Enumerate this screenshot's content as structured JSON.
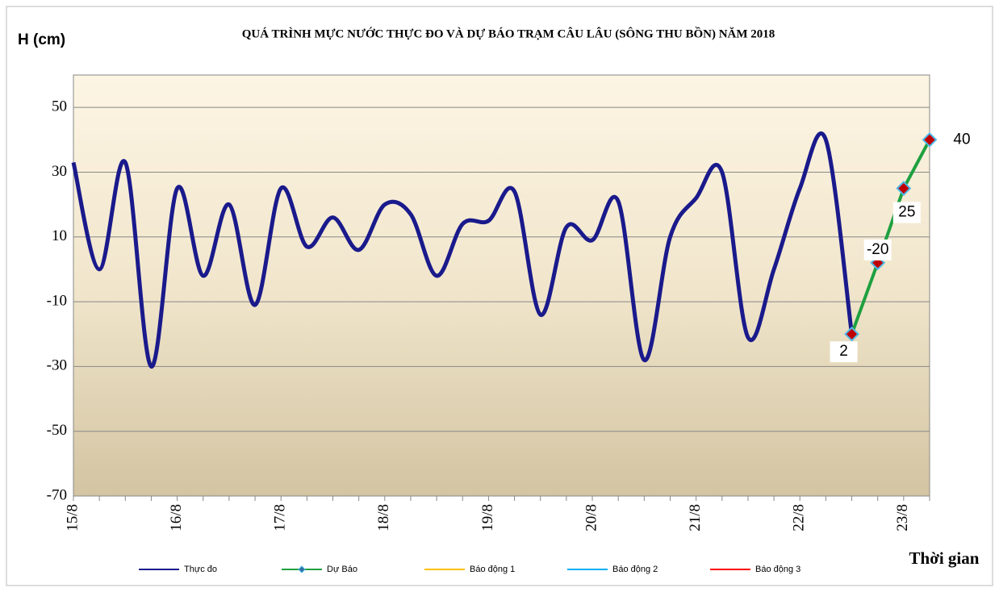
{
  "chart_data": {
    "type": "line",
    "title": "QUÁ TRÌNH MỰC NƯỚC THỰC ĐO VÀ DỰ BÁO TRẠM CÂU LÂU (SÔNG THU BỒN) NĂM  2018",
    "y_label": "H (cm)",
    "x_label": "Thời gian",
    "categories": [
      "15/8",
      null,
      null,
      null,
      "16/8",
      null,
      null,
      null,
      "17/8",
      null,
      null,
      null,
      "18/8",
      null,
      null,
      null,
      "19/8",
      null,
      null,
      null,
      "20/8",
      null,
      null,
      null,
      "21/8",
      null,
      null,
      null,
      "22/8",
      null,
      null,
      null,
      "23/8",
      null
    ],
    "series": [
      {
        "name": "Thực đo",
        "color": "#1a1a8c",
        "values": [
          33,
          0,
          33,
          -30,
          25,
          -2,
          20,
          -11,
          25,
          7,
          16,
          6,
          20,
          17,
          -2,
          14,
          15,
          24,
          -14,
          13,
          9,
          21,
          -28,
          10,
          22,
          30,
          -21,
          0,
          25,
          40,
          -20,
          null,
          null,
          null
        ]
      },
      {
        "name": "Dự Báo",
        "color": "#1fa040",
        "marker_color": "#c00000",
        "values": [
          null,
          null,
          null,
          null,
          null,
          null,
          null,
          null,
          null,
          null,
          null,
          null,
          null,
          null,
          null,
          null,
          null,
          null,
          null,
          null,
          null,
          null,
          null,
          null,
          null,
          null,
          null,
          null,
          null,
          null,
          -20,
          2,
          25,
          40
        ],
        "annotations": [
          "2",
          "-20",
          "25",
          "40"
        ]
      }
    ],
    "alarm_legend": [
      {
        "name": "Báo động 1",
        "color": "#ffc000"
      },
      {
        "name": "Báo động 2",
        "color": "#00b0f0"
      },
      {
        "name": "Báo động 3",
        "color": "#ff0000"
      }
    ],
    "ylim": [
      -70,
      60
    ],
    "yticks": [
      -70,
      -50,
      -30,
      -10,
      10,
      30,
      50
    ],
    "grid": true
  }
}
